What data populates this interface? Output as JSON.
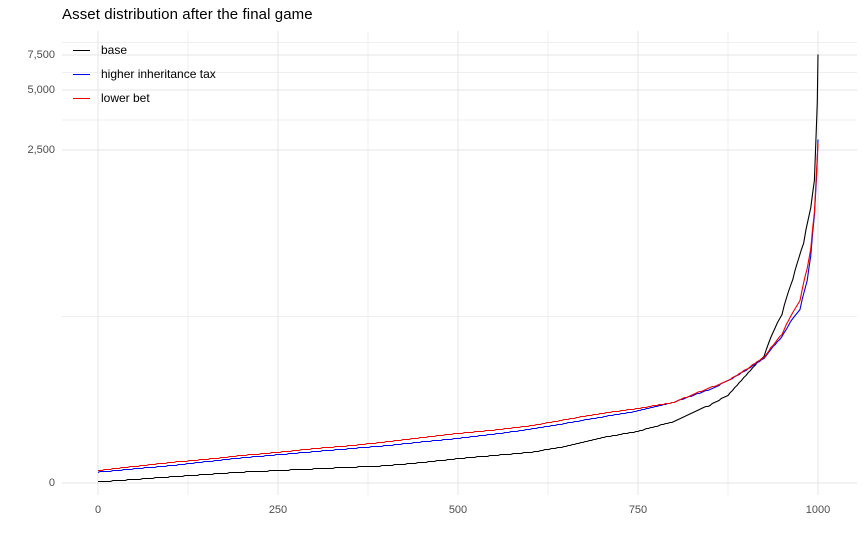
{
  "chart": {
    "title": "Asset distribution after the final game",
    "background_color": "#FFFFFF",
    "grid_major_color": "#E4E4E4",
    "grid_minor_color": "#EFEFEF",
    "axis_text_color": "#4D4D4D",
    "legend_position": "top-left-inside"
  },
  "chart_data": {
    "type": "line",
    "title": "Asset distribution after the final game",
    "xlabel": "",
    "ylabel": "",
    "x_ticks": [
      0,
      250,
      500,
      750,
      1000
    ],
    "y_ticks": [
      {
        "value": 0,
        "label": "0"
      },
      {
        "value": 2500,
        "label": "2,500"
      },
      {
        "value": 5000,
        "label": "5,000"
      },
      {
        "value": 7500,
        "label": "7,500"
      }
    ],
    "xlim": [
      0,
      1000
    ],
    "ylim": [
      0,
      10000
    ],
    "y_scale": "pseudo-log (asinh), compresses large values",
    "grid": "major+minor",
    "legend_entries": [
      "base",
      "higher inheritance tax",
      "lower bet"
    ],
    "x_meaning": "player rank (assets sorted ascending, 1000 players)",
    "series": [
      {
        "name": "base",
        "color": "#000000",
        "points": [
          [
            0,
            2
          ],
          [
            50,
            5
          ],
          [
            100,
            8
          ],
          [
            150,
            11
          ],
          [
            200,
            14
          ],
          [
            250,
            16
          ],
          [
            300,
            18
          ],
          [
            350,
            20
          ],
          [
            400,
            22
          ],
          [
            450,
            26
          ],
          [
            500,
            31
          ],
          [
            550,
            35
          ],
          [
            600,
            39
          ],
          [
            650,
            47
          ],
          [
            700,
            59
          ],
          [
            750,
            68
          ],
          [
            800,
            83
          ],
          [
            850,
            110
          ],
          [
            875,
            128
          ],
          [
            900,
            170
          ],
          [
            925,
            220
          ],
          [
            950,
            370
          ],
          [
            965,
            560
          ],
          [
            980,
            850
          ],
          [
            990,
            1290
          ],
          [
            995,
            1760
          ],
          [
            998,
            3500
          ],
          [
            999,
            4400
          ],
          [
            1000,
            7600
          ]
        ]
      },
      {
        "name": "higher inheritance tax",
        "color": "#0000EE",
        "points": [
          [
            0,
            14
          ],
          [
            50,
            18
          ],
          [
            100,
            22
          ],
          [
            150,
            27
          ],
          [
            200,
            32
          ],
          [
            250,
            36
          ],
          [
            300,
            40
          ],
          [
            350,
            44
          ],
          [
            400,
            48
          ],
          [
            450,
            53
          ],
          [
            500,
            58
          ],
          [
            550,
            64
          ],
          [
            600,
            71
          ],
          [
            650,
            80
          ],
          [
            700,
            90
          ],
          [
            750,
            100
          ],
          [
            800,
            115
          ],
          [
            850,
            140
          ],
          [
            875,
            158
          ],
          [
            900,
            182
          ],
          [
            925,
            214
          ],
          [
            950,
            280
          ],
          [
            965,
            350
          ],
          [
            975,
            390
          ],
          [
            985,
            550
          ],
          [
            990,
            740
          ],
          [
            995,
            1180
          ],
          [
            998,
            1870
          ],
          [
            1000,
            2850
          ]
        ]
      },
      {
        "name": "lower bet",
        "color": "#EE0000",
        "points": [
          [
            0,
            16
          ],
          [
            50,
            21
          ],
          [
            100,
            26
          ],
          [
            150,
            30
          ],
          [
            200,
            35
          ],
          [
            250,
            39
          ],
          [
            300,
            44
          ],
          [
            350,
            48
          ],
          [
            400,
            53
          ],
          [
            450,
            59
          ],
          [
            500,
            65
          ],
          [
            550,
            70
          ],
          [
            600,
            76
          ],
          [
            650,
            86
          ],
          [
            700,
            96
          ],
          [
            750,
            104
          ],
          [
            800,
            115
          ],
          [
            850,
            143
          ],
          [
            875,
            158
          ],
          [
            900,
            184
          ],
          [
            925,
            216
          ],
          [
            950,
            290
          ],
          [
            965,
            375
          ],
          [
            975,
            435
          ],
          [
            985,
            635
          ],
          [
            990,
            800
          ],
          [
            995,
            1220
          ],
          [
            998,
            1990
          ],
          [
            1000,
            2720
          ]
        ]
      }
    ]
  }
}
